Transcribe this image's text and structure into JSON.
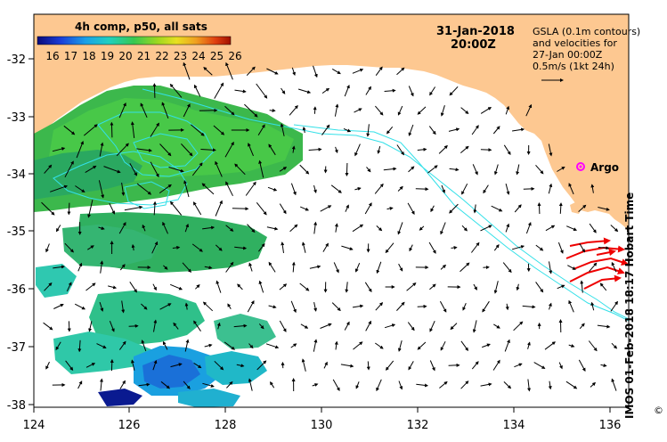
{
  "map": {
    "title_date": "31-Jan-2018",
    "title_time": "20:00Z",
    "colorbar_title": "4h comp, p50, all sats",
    "colorbar_ticks": [
      "16",
      "17",
      "18",
      "19",
      "20",
      "21",
      "22",
      "23",
      "24",
      "25",
      "26"
    ],
    "legend_lines": [
      "GSLA (0.1m contours)",
      "and velocities for",
      "27-Jan 00:00Z",
      "0.5m/s (1kt 24h)"
    ],
    "argo_label": "Argo",
    "credit": "IMOS 01-Feb-2018 18:17 Hobart Time",
    "copyright": "©",
    "x_ticks": [
      "124",
      "126",
      "128",
      "130",
      "132",
      "134",
      "136"
    ],
    "y_ticks": [
      "-32",
      "-33",
      "-34",
      "-35",
      "-36",
      "-37",
      "-38"
    ],
    "colors": {
      "land": "#fdc891",
      "contour": "#33e0e8",
      "argo": "#ff00ff",
      "drifter": "#ee0000"
    }
  }
}
